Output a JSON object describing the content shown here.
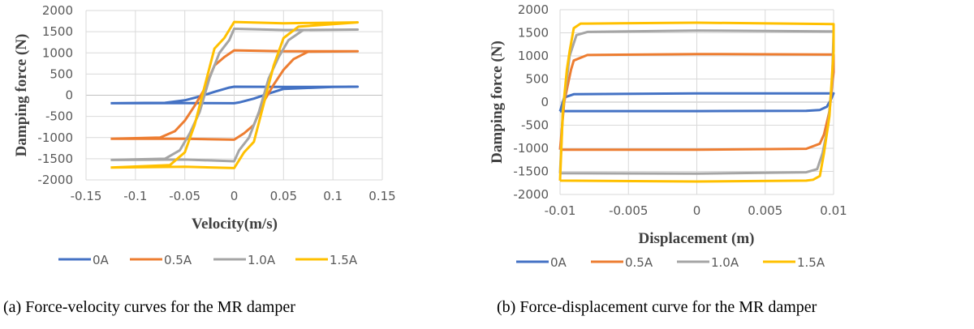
{
  "chart_data": [
    {
      "type": "line",
      "title": "",
      "xlabel": "Velocity(m/s)",
      "ylabel": "Damping force (N)",
      "xlim": [
        -0.15,
        0.15
      ],
      "ylim": [
        -2000,
        2000
      ],
      "xticks": [
        "-0.15",
        "-0.1",
        "-0.05",
        "0",
        "0.05",
        "0.1",
        "0.15"
      ],
      "xtick_values": [
        -0.15,
        -0.1,
        -0.05,
        0,
        0.05,
        0.1,
        0.15
      ],
      "yticks": [
        "2000",
        "1500",
        "1000",
        "500",
        "0",
        "-500",
        "-1000",
        "-1500",
        "-2000"
      ],
      "ytick_values": [
        2000,
        1500,
        1000,
        500,
        0,
        -500,
        -1000,
        -1500,
        -2000
      ],
      "grid": true,
      "legend": "bottom",
      "caption": "(a)  Force-velocity curves for the MR damper",
      "series": [
        {
          "name": "0A",
          "color": "#4472C4",
          "x": [
            -0.125,
            -0.07,
            -0.05,
            -0.035,
            -0.02,
            -0.005,
            0,
            0.05,
            0.125,
            0.1,
            0.05,
            0.035,
            0.02,
            0.005,
            0,
            -0.05,
            -0.125
          ],
          "y": [
            -190,
            -180,
            -120,
            -30,
            80,
            180,
            200,
            195,
            200,
            195,
            150,
            40,
            -80,
            -170,
            -190,
            -185,
            -190
          ]
        },
        {
          "name": "0.5A",
          "color": "#ED7D31",
          "x": [
            -0.125,
            -0.075,
            -0.06,
            -0.05,
            -0.04,
            -0.03,
            -0.02,
            -0.01,
            0,
            0.05,
            0.125,
            0.075,
            0.06,
            0.05,
            0.04,
            0.03,
            0.02,
            0.01,
            0,
            -0.05,
            -0.125
          ],
          "y": [
            -1030,
            -1000,
            -850,
            -600,
            -250,
            150,
            700,
            900,
            1060,
            1040,
            1040,
            1030,
            850,
            600,
            250,
            -150,
            -700,
            -900,
            -1050,
            -1030,
            -1030
          ]
        },
        {
          "name": "1.0A",
          "color": "#A5A5A5",
          "x": [
            -0.125,
            -0.07,
            -0.055,
            -0.045,
            -0.035,
            -0.025,
            -0.015,
            -0.005,
            0,
            0.05,
            0.125,
            0.07,
            0.055,
            0.045,
            0.035,
            0.025,
            0.015,
            0.005,
            0,
            -0.05,
            -0.125
          ],
          "y": [
            -1530,
            -1500,
            -1300,
            -900,
            -400,
            400,
            1000,
            1300,
            1570,
            1540,
            1550,
            1540,
            1300,
            900,
            400,
            -400,
            -1000,
            -1300,
            -1560,
            -1520,
            -1530
          ]
        },
        {
          "name": "1.5A",
          "color": "#FFC000",
          "x": [
            -0.125,
            -0.065,
            -0.05,
            -0.04,
            -0.03,
            -0.02,
            -0.01,
            0,
            0.05,
            0.125,
            0.065,
            0.05,
            0.04,
            0.03,
            0.02,
            0.01,
            0,
            -0.05,
            -0.125
          ],
          "y": [
            -1710,
            -1650,
            -1350,
            -700,
            200,
            1100,
            1350,
            1730,
            1700,
            1720,
            1620,
            1350,
            700,
            -200,
            -1100,
            -1350,
            -1720,
            -1690,
            -1710
          ]
        }
      ]
    },
    {
      "type": "line",
      "title": "",
      "xlabel": "Displacement (m)",
      "ylabel": "Damping force (N)",
      "xlim": [
        -0.01,
        0.01
      ],
      "ylim": [
        -2000,
        2000
      ],
      "xticks": [
        "-0.01",
        "-0.005",
        "0",
        "0.005",
        "0.01"
      ],
      "xtick_values": [
        -0.01,
        -0.005,
        0,
        0.005,
        0.01
      ],
      "yticks": [
        "2000",
        "1500",
        "1000",
        "500",
        "0",
        "-500",
        "-1000",
        "-1500",
        "-2000"
      ],
      "ytick_values": [
        2000,
        1500,
        1000,
        500,
        0,
        -500,
        -1000,
        -1500,
        -2000
      ],
      "grid": true,
      "legend": "bottom",
      "caption": "(b) Force-displacement curve for the MR damper",
      "series": [
        {
          "name": "0A",
          "color": "#4472C4",
          "x": [
            -0.01,
            -0.0097,
            -0.009,
            0,
            0.01,
            0.0098,
            0.0095,
            0.009,
            0.008,
            0,
            -0.0098,
            -0.01
          ],
          "y": [
            -200,
            100,
            170,
            190,
            190,
            50,
            -100,
            -170,
            -190,
            -195,
            -195,
            -200
          ]
        },
        {
          "name": "0.5A",
          "color": "#ED7D31",
          "x": [
            -0.01,
            -0.0097,
            -0.0092,
            -0.009,
            -0.008,
            0,
            0.01,
            0.01,
            0.0097,
            0.0093,
            0.009,
            0.008,
            0,
            -0.01
          ],
          "y": [
            -1030,
            0,
            700,
            900,
            1020,
            1040,
            1030,
            650,
            -200,
            -700,
            -900,
            -1010,
            -1030,
            -1030
          ]
        },
        {
          "name": "1.0A",
          "color": "#A5A5A5",
          "x": [
            -0.01,
            -0.0098,
            -0.0093,
            -0.0088,
            -0.008,
            0,
            0.01,
            0.0099,
            0.0096,
            0.0092,
            0.0088,
            0.008,
            0,
            -0.01
          ],
          "y": [
            -1540,
            -200,
            1000,
            1450,
            1520,
            1550,
            1530,
            500,
            -500,
            -1100,
            -1450,
            -1520,
            -1550,
            -1540
          ]
        },
        {
          "name": "1.5A",
          "color": "#FFC000",
          "x": [
            -0.01,
            -0.0098,
            -0.0095,
            -0.0093,
            -0.009,
            -0.0085,
            -0.008,
            0,
            0.01,
            0.01,
            0.0097,
            0.0093,
            0.009,
            0.0085,
            0.008,
            0,
            -0.01,
            -0.01
          ],
          "y": [
            -1700,
            -200,
            700,
            1100,
            1600,
            1700,
            1700,
            1720,
            1690,
            1100,
            -300,
            -1100,
            -1600,
            -1680,
            -1700,
            -1720,
            -1700,
            -1700
          ]
        }
      ]
    }
  ]
}
